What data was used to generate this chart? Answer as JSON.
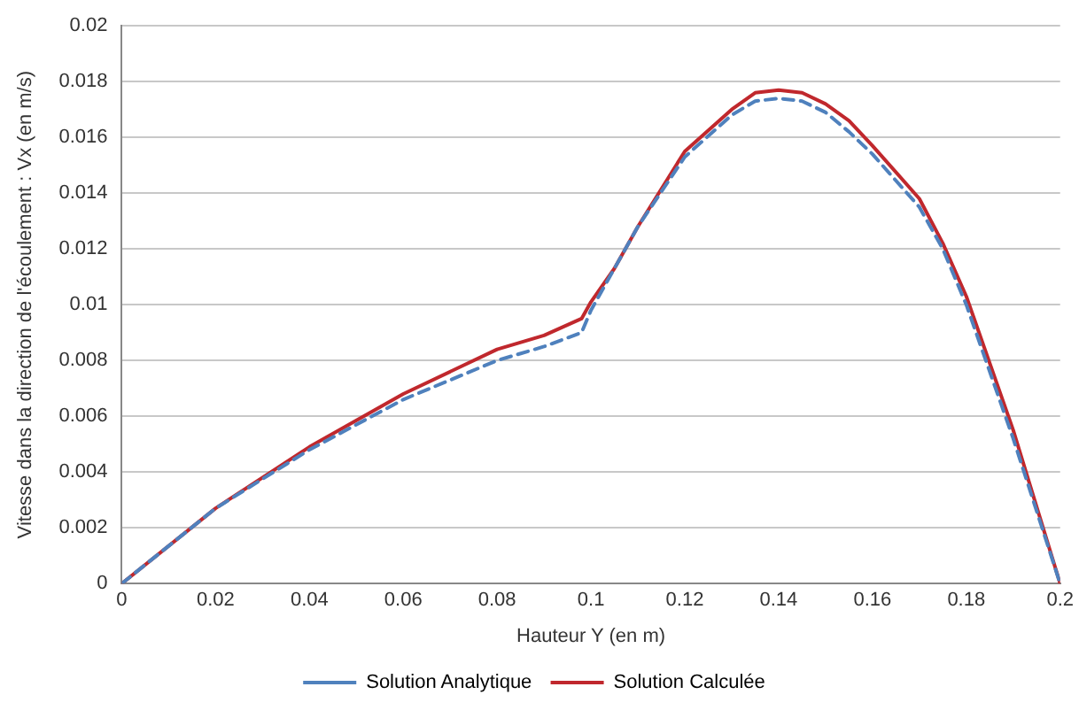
{
  "chart_data": {
    "type": "line",
    "xlabel": "Hauteur Y (en m)",
    "ylabel": "Vitesse dans la direction de l'écoulement : Vx (en m/s)",
    "x": [
      0,
      0.02,
      0.04,
      0.06,
      0.08,
      0.09,
      0.098,
      0.1,
      0.105,
      0.11,
      0.12,
      0.13,
      0.135,
      0.14,
      0.145,
      0.15,
      0.155,
      0.16,
      0.17,
      0.175,
      0.18,
      0.19,
      0.2
    ],
    "series": [
      {
        "name": "Solution Analytique",
        "color": "#4f81bd",
        "line_style": "dashed",
        "values": [
          0,
          0.0027,
          0.0048,
          0.0066,
          0.008,
          0.0085,
          0.009,
          0.0098,
          0.0113,
          0.0128,
          0.0153,
          0.0168,
          0.0173,
          0.0174,
          0.0173,
          0.0169,
          0.0162,
          0.0154,
          0.0135,
          0.012,
          0.01,
          0.0052,
          0
        ]
      },
      {
        "name": "Solution Calculée",
        "color": "#c0282d",
        "line_style": "solid",
        "values": [
          0,
          0.0027,
          0.0049,
          0.0068,
          0.0084,
          0.0089,
          0.0095,
          0.0101,
          0.0113,
          0.0128,
          0.0155,
          0.017,
          0.0176,
          0.0177,
          0.0176,
          0.0172,
          0.0166,
          0.0157,
          0.0138,
          0.0122,
          0.0103,
          0.0055,
          0
        ]
      }
    ],
    "xlim": [
      0,
      0.2
    ],
    "xticks": [
      0,
      0.02,
      0.04,
      0.06,
      0.08,
      0.1,
      0.12,
      0.14,
      0.16,
      0.18,
      0.2
    ],
    "ylim": [
      0,
      0.02
    ],
    "yticks": [
      0,
      0.002,
      0.004,
      0.006,
      0.008,
      0.01,
      0.012,
      0.014,
      0.016,
      0.018,
      0.02
    ],
    "grid": "y",
    "legend": "bottom",
    "marker": "none"
  }
}
